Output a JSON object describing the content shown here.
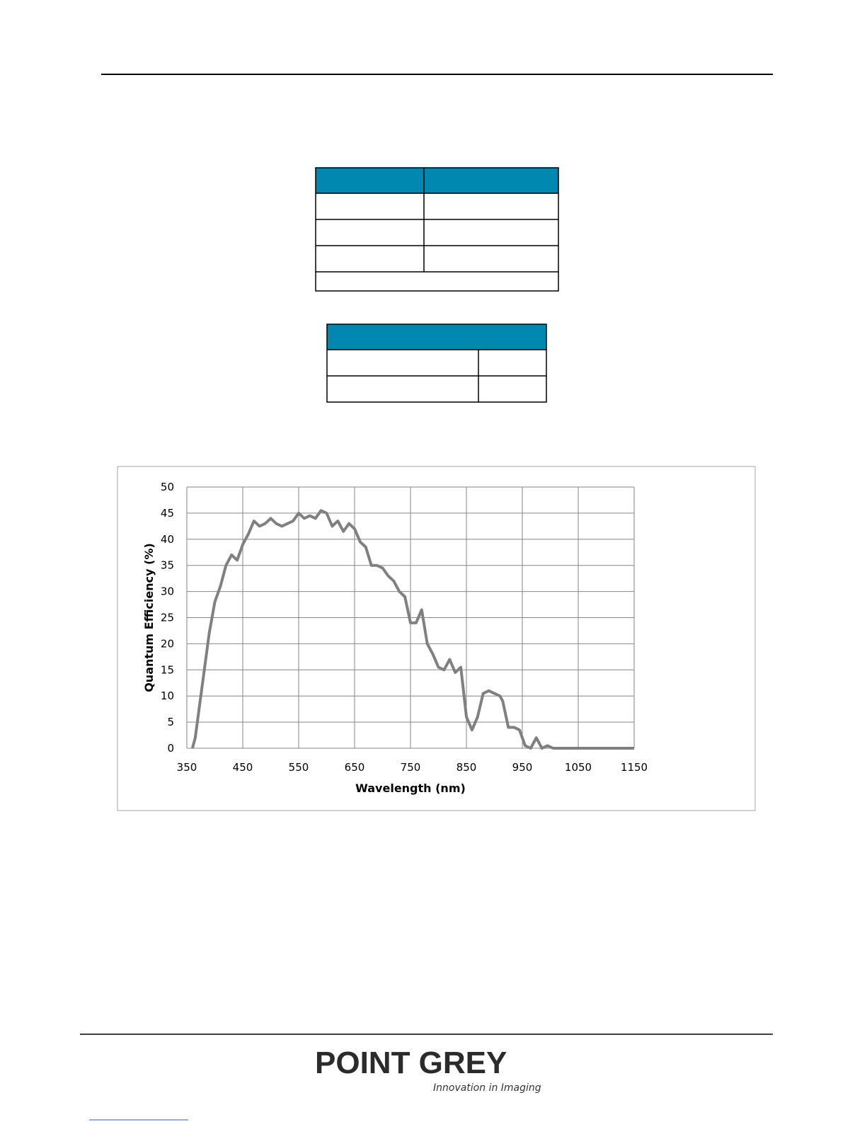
{
  "chart_data": {
    "type": "line",
    "x_label": "Wavelength (nm)",
    "y_label": "Quantum Efficiency  (%)",
    "xlim": [
      350,
      1150
    ],
    "xticks": [
      350,
      450,
      550,
      650,
      750,
      850,
      950,
      1050,
      1150
    ],
    "ylim": [
      0,
      50
    ],
    "yticks": [
      0,
      5,
      10,
      15,
      20,
      25,
      30,
      35,
      40,
      45,
      50
    ],
    "grid": true,
    "x": [
      360,
      365,
      375,
      390,
      400,
      410,
      420,
      430,
      440,
      450,
      460,
      470,
      480,
      490,
      500,
      510,
      520,
      530,
      540,
      550,
      560,
      570,
      580,
      590,
      600,
      610,
      620,
      630,
      640,
      650,
      660,
      670,
      680,
      690,
      700,
      710,
      720,
      730,
      740,
      750,
      760,
      770,
      780,
      790,
      800,
      810,
      820,
      830,
      840,
      850,
      860,
      870,
      880,
      890,
      900,
      910,
      915,
      925,
      935,
      945,
      955,
      965,
      975,
      985,
      995,
      1005,
      1050,
      1150
    ],
    "series": [
      {
        "color": "#808080",
        "values": [
          0,
          2,
          10,
          22,
          28,
          31,
          35,
          37,
          36,
          39,
          41,
          43.5,
          42.5,
          43,
          44,
          43,
          42.5,
          43,
          43.5,
          45,
          44,
          44.5,
          44,
          45.5,
          45,
          42.5,
          43.5,
          41.5,
          43,
          42,
          39.5,
          38.5,
          35,
          35,
          34.5,
          33,
          32,
          30,
          29,
          24,
          24,
          26.5,
          20,
          18,
          15.5,
          15,
          17,
          14.5,
          15.5,
          6,
          3.5,
          6,
          10.5,
          11,
          10.5,
          10,
          9,
          4,
          4,
          3.5,
          0.5,
          0,
          2,
          0,
          0.5,
          0,
          0,
          0
        ]
      }
    ]
  },
  "footer": {
    "logo": "POINT GREY",
    "tagline": "Innovation in Imaging"
  }
}
